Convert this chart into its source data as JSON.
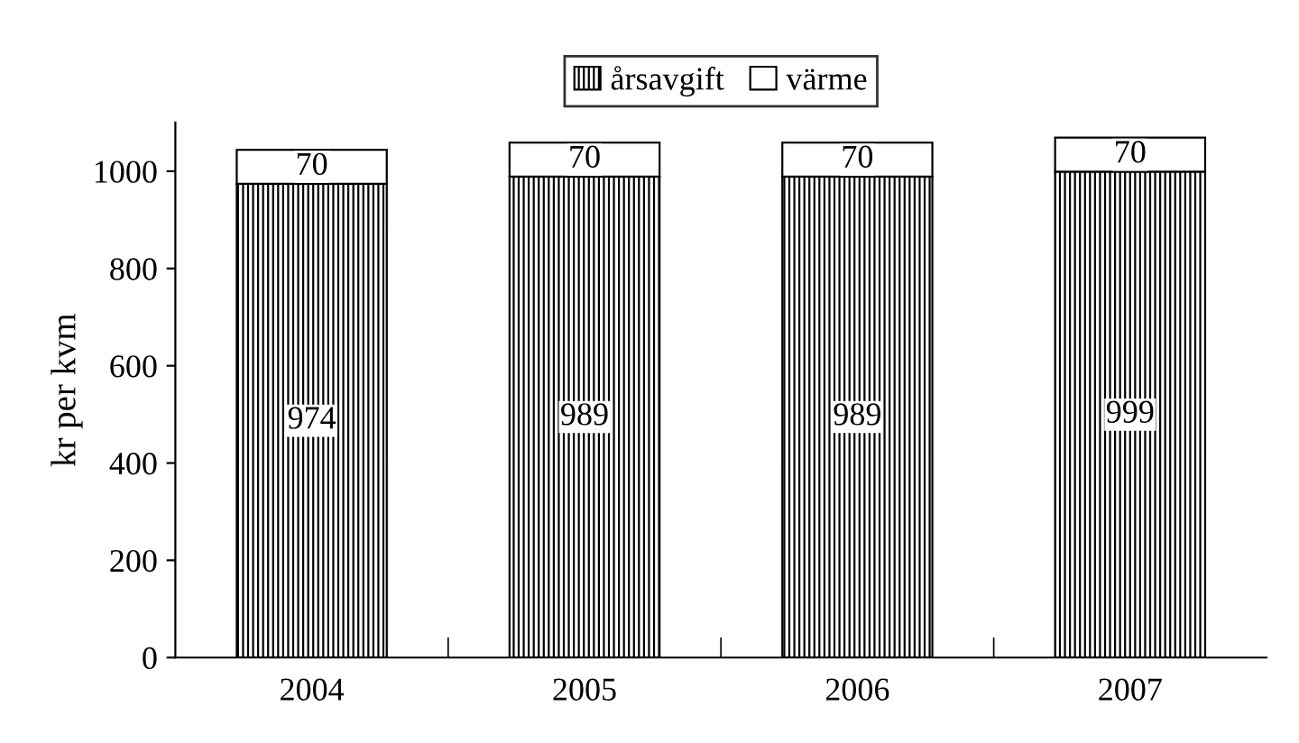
{
  "chart_data": {
    "type": "bar",
    "stacked": true,
    "ylabel": "kr per kvm",
    "categories": [
      "2004",
      "2005",
      "2006",
      "2007"
    ],
    "series": [
      {
        "name": "årsavgift",
        "color": "#000000",
        "values": [
          974,
          989,
          989,
          999
        ]
      },
      {
        "name": "värme",
        "color": "#ffffff",
        "values": [
          70,
          70,
          70,
          70
        ]
      }
    ],
    "ylim": [
      0,
      1100
    ],
    "yticks": [
      0,
      200,
      400,
      600,
      800,
      1000
    ],
    "data_labels": true,
    "legend": "top",
    "grid": false
  }
}
